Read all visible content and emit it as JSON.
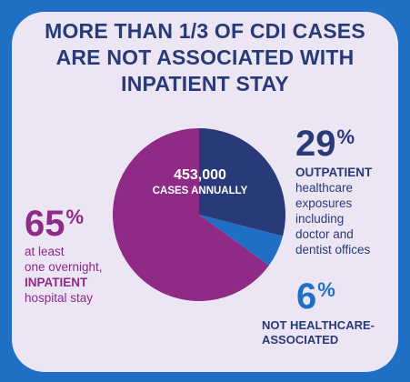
{
  "title": {
    "line1": "MORE THAN 1/3 OF CDI CASES",
    "line2": "ARE NOT ASSOCIATED WITH",
    "line3": "INPATIENT STAY"
  },
  "center_label": {
    "value": "453,000",
    "caption": "CASES ANNUALLY"
  },
  "chart_data": {
    "type": "pie",
    "title": "",
    "slices": [
      {
        "value": 29,
        "pct_label": "29",
        "color": "#293a78",
        "label_lines": [
          "OUTPATIENT",
          "healthcare",
          "exposures",
          "including",
          "doctor and",
          "dentist offices"
        ]
      },
      {
        "value": 6,
        "pct_label": "6",
        "color": "#1f6fc5",
        "label_lines": [
          "NOT HEALTHCARE-",
          "ASSOCIATED"
        ]
      },
      {
        "value": 65,
        "pct_label": "65",
        "color": "#8f2a86",
        "label_lines": [
          "at least",
          "one overnight,",
          "INPATIENT",
          "hospital stay"
        ]
      }
    ],
    "percent_sign": "%"
  }
}
